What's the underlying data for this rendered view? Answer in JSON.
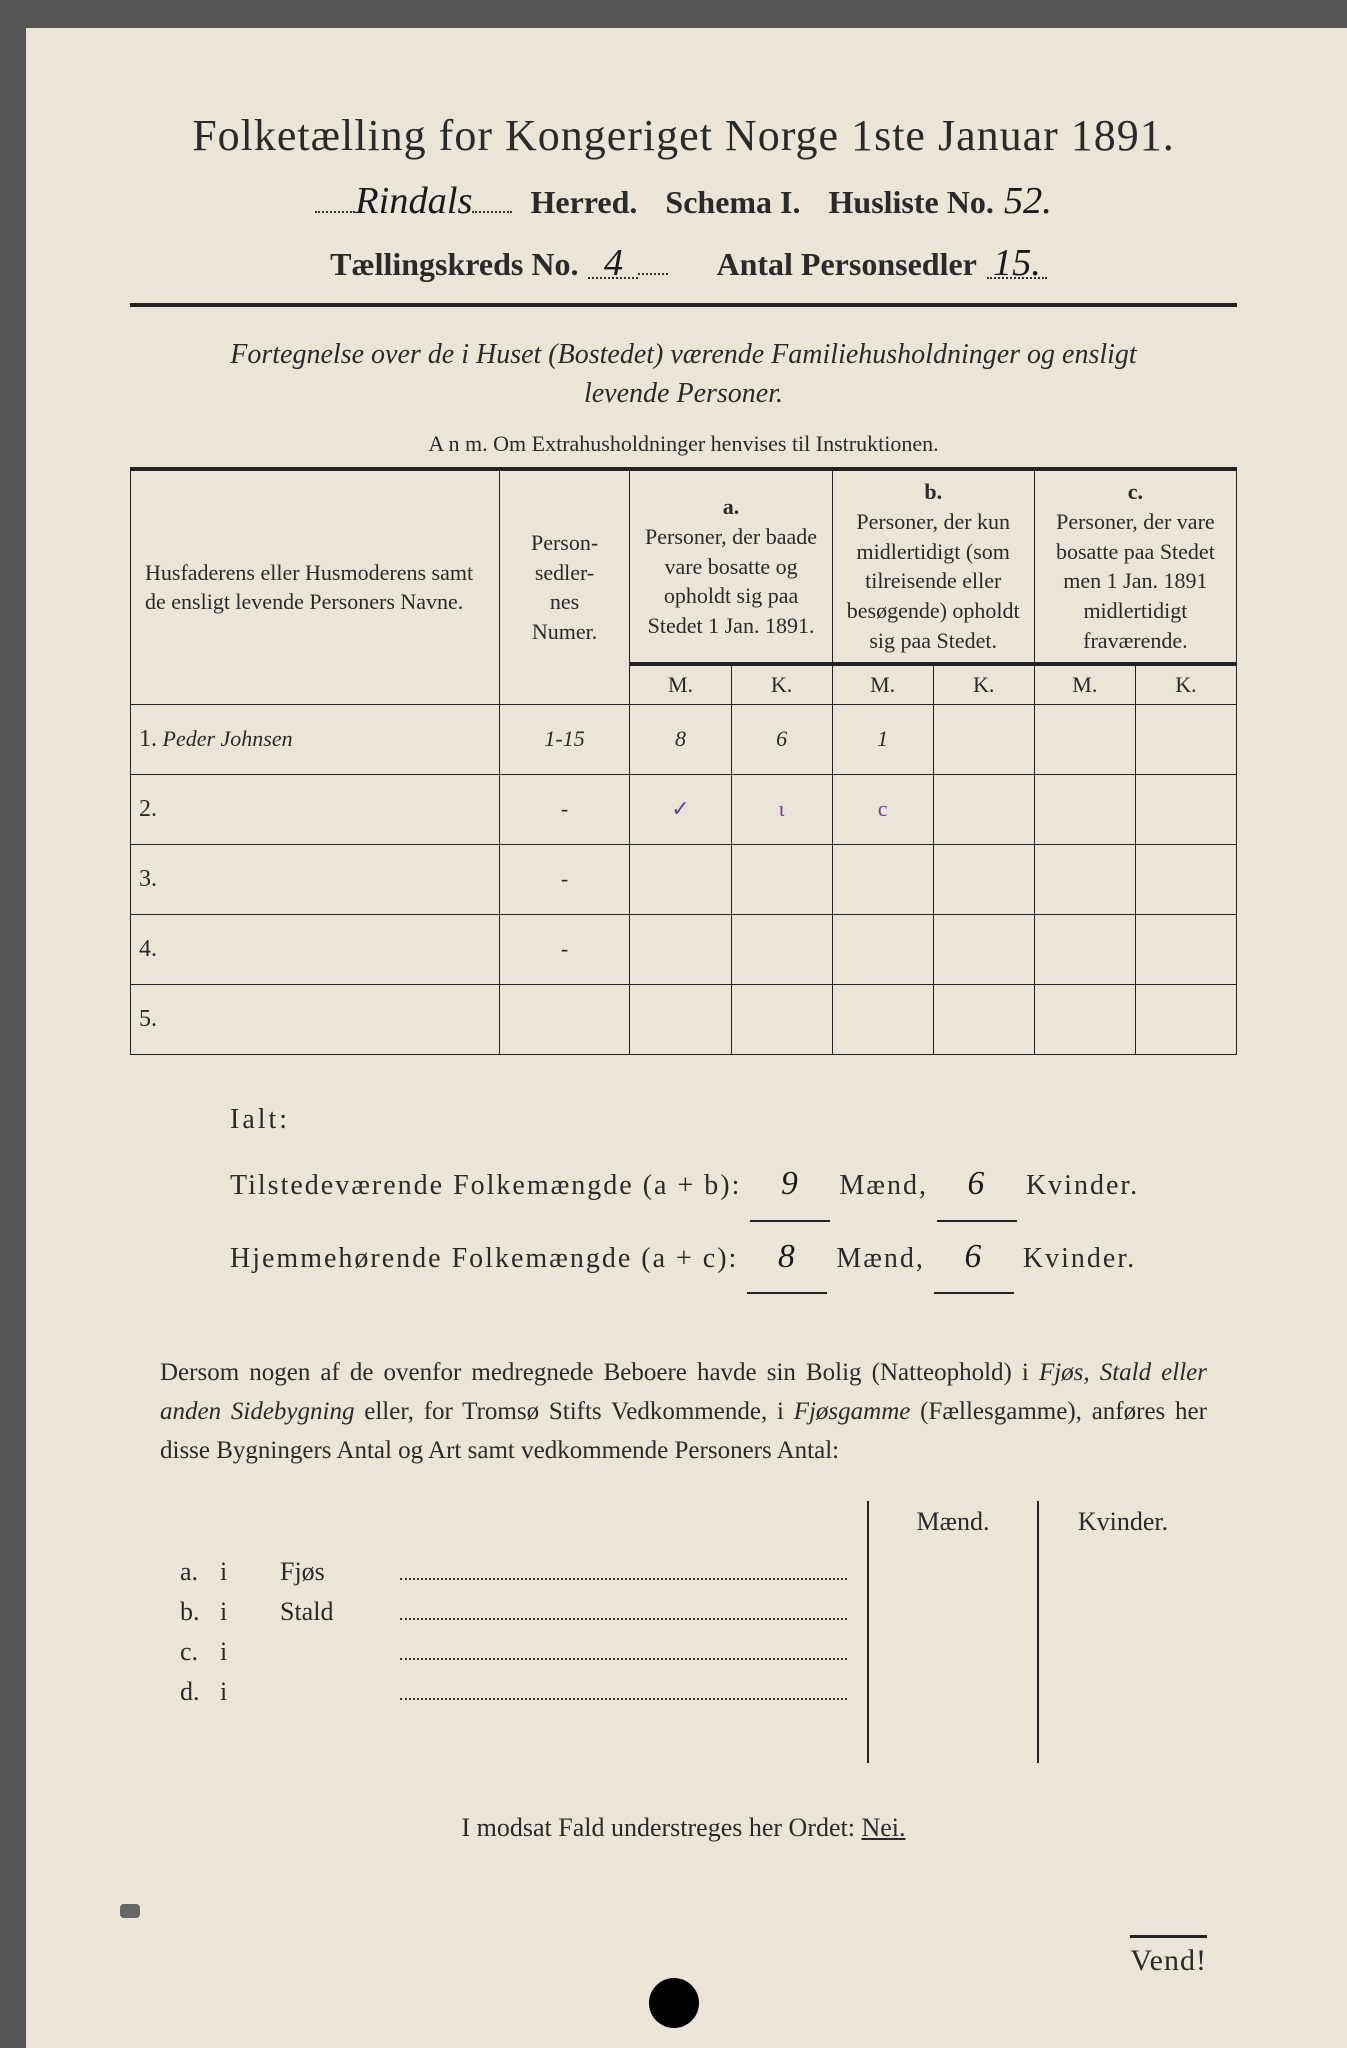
{
  "title": "Folketælling for Kongeriget Norge 1ste Januar 1891.",
  "header": {
    "herred_hw": "Rindals",
    "herred_label": "Herred.",
    "schema": "Schema I.",
    "husliste_label": "Husliste No.",
    "husliste_hw": "52.",
    "kreds_label": "Tællingskreds No.",
    "kreds_hw": "4",
    "antal_label": "Antal Personsedler",
    "antal_hw": "15."
  },
  "subtitle": "Fortegnelse over de i Huset (Bostedet) værende Familiehusholdninger og ensligt levende Personer.",
  "anm": "A n m.  Om Extrahusholdninger henvises til Instruktionen.",
  "columns": {
    "c1": "Husfaderens eller Husmoderens samt de ensligt levende Personers Navne.",
    "c2": "Person-\nsedler-\nnes\nNumer.",
    "a_lett": "a.",
    "a": "Personer, der baade vare bosatte og opholdt sig paa Stedet 1 Jan. 1891.",
    "b_lett": "b.",
    "b": "Personer, der kun midlertidigt (som tilreisende eller besøgende) opholdt sig paa Stedet.",
    "c_lett": "c.",
    "c": "Personer, der vare bosatte paa Stedet men 1 Jan. 1891 midlertidigt fraværende.",
    "M": "M.",
    "K": "K."
  },
  "rows": [
    {
      "n": "1.",
      "name": "Peder Johnsen",
      "num": "1-15",
      "aM": "8",
      "aK": "6",
      "bM": "1",
      "bK": "",
      "cM": "",
      "cK": ""
    },
    {
      "n": "2.",
      "name": "",
      "num": "-",
      "aM": "✓",
      "aK": "ɩ",
      "bM": "c",
      "bK": "",
      "cM": "",
      "cK": ""
    },
    {
      "n": "3.",
      "name": "",
      "num": "-",
      "aM": "",
      "aK": "",
      "bM": "",
      "bK": "",
      "cM": "",
      "cK": ""
    },
    {
      "n": "4.",
      "name": "",
      "num": "-",
      "aM": "",
      "aK": "",
      "bM": "",
      "bK": "",
      "cM": "",
      "cK": ""
    },
    {
      "n": "5.",
      "name": "",
      "num": "",
      "aM": "",
      "aK": "",
      "bM": "",
      "bK": "",
      "cM": "",
      "cK": ""
    }
  ],
  "ialt": {
    "ialt": "Ialt:",
    "line2_label": "Tilstedeværende Folkemængde (a + b):",
    "line2_m": "9",
    "line2_k": "6",
    "line3_label": "Hjemmehørende Folkemængde (a + c):",
    "line3_m": "8",
    "line3_k": "6",
    "maend": "Mænd,",
    "kvinder": "Kvinder."
  },
  "para": {
    "text1": "Dersom nogen af de ovenfor medregnede Beboere havde sin Bolig (Natteophold) i ",
    "em": "Fjøs, Stald eller anden Sidebygning",
    "text2": " eller, for Tromsø Stifts Vedkommende, i ",
    "em2": "Fjøsgamme",
    "text3": " (Fællesgamme), anføres her disse Bygningers Antal og Art samt vedkommende Personers Antal:"
  },
  "bottom": {
    "maend": "Mænd.",
    "kvinder": "Kvinder.",
    "rows": [
      {
        "lett": "a.",
        "i": "i",
        "word": "Fjøs"
      },
      {
        "lett": "b.",
        "i": "i",
        "word": "Stald"
      },
      {
        "lett": "c.",
        "i": "i",
        "word": ""
      },
      {
        "lett": "d.",
        "i": "i",
        "word": ""
      }
    ]
  },
  "nei": {
    "pre": "I modsat Fald understreges her Ordet: ",
    "word": "Nei."
  },
  "vend": "Vend!",
  "colors": {
    "paper": "#eae5d8",
    "ink": "#2a2a2a",
    "purple": "#6b3fa0"
  }
}
